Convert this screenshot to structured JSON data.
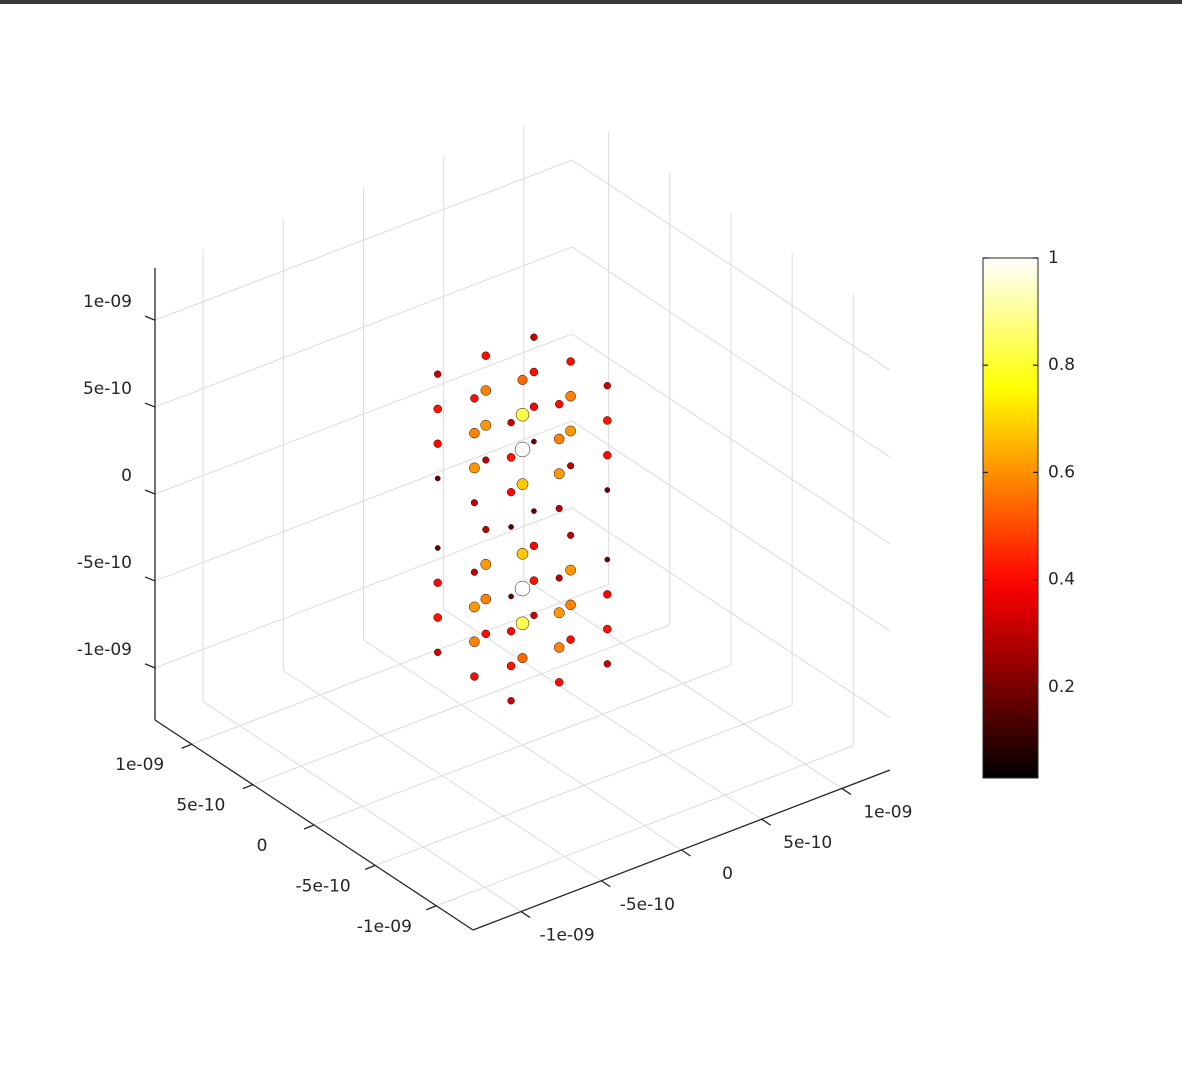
{
  "chart_data": {
    "type": "scatter3d",
    "colormap": "hot",
    "grid": true,
    "xlim": [
      -1.3e-09,
      1.3e-09
    ],
    "ylim": [
      -1.3e-09,
      1.3e-09
    ],
    "zlim": [
      -1.3e-09,
      1.3e-09
    ],
    "xticks": [
      {
        "value": -1e-09,
        "label": "-1e-09"
      },
      {
        "value": -5e-10,
        "label": "-5e-10"
      },
      0,
      {
        "value": 5e-10,
        "label": "5e-10"
      },
      {
        "value": 1e-09,
        "label": "1e-09"
      }
    ],
    "yticks": [
      {
        "value": -1e-09,
        "label": "-1e-09"
      },
      {
        "value": -5e-10,
        "label": "-5e-10"
      },
      0,
      {
        "value": 5e-10,
        "label": "5e-10"
      },
      {
        "value": 1e-09,
        "label": "1e-09"
      }
    ],
    "zticks": [
      {
        "value": -1e-09,
        "label": "-1e-09"
      },
      {
        "value": -5e-10,
        "label": "-5e-10"
      },
      0,
      {
        "value": 5e-10,
        "label": "5e-10"
      },
      {
        "value": 1e-09,
        "label": "1e-09"
      }
    ],
    "clim": [
      0.03,
      1
    ],
    "cticks": [
      0.2,
      0.4,
      0.6,
      0.8,
      1
    ],
    "x": [
      -3e-10,
      -3e-10,
      -3e-10,
      0,
      0,
      0,
      3e-10,
      3e-10,
      3e-10,
      -3e-10,
      -3e-10,
      -3e-10,
      0,
      0,
      0,
      3e-10,
      3e-10,
      3e-10,
      -3e-10,
      -3e-10,
      -3e-10,
      0,
      0,
      0,
      3e-10,
      3e-10,
      3e-10,
      -3e-10,
      -3e-10,
      -3e-10,
      0,
      0,
      0,
      3e-10,
      3e-10,
      3e-10,
      -3e-10,
      -3e-10,
      -3e-10,
      0,
      0,
      0,
      3e-10,
      3e-10,
      3e-10,
      -3e-10,
      -3e-10,
      -3e-10,
      0,
      0,
      0,
      3e-10,
      3e-10,
      3e-10,
      -3e-10,
      -3e-10,
      -3e-10,
      0,
      0,
      0,
      3e-10,
      3e-10,
      3e-10,
      -3e-10,
      -3e-10,
      -3e-10,
      0,
      0,
      0,
      3e-10,
      3e-10,
      3e-10
    ],
    "y": [
      -3e-10,
      0,
      3e-10,
      -3e-10,
      0,
      3e-10,
      -3e-10,
      0,
      3e-10,
      -3e-10,
      0,
      3e-10,
      -3e-10,
      0,
      3e-10,
      -3e-10,
      0,
      3e-10,
      -3e-10,
      0,
      3e-10,
      -3e-10,
      0,
      3e-10,
      -3e-10,
      0,
      3e-10,
      -3e-10,
      0,
      3e-10,
      -3e-10,
      0,
      3e-10,
      -3e-10,
      0,
      3e-10,
      -3e-10,
      0,
      3e-10,
      -3e-10,
      0,
      3e-10,
      -3e-10,
      0,
      3e-10,
      -3e-10,
      0,
      3e-10,
      -3e-10,
      0,
      3e-10,
      -3e-10,
      0,
      3e-10,
      -3e-10,
      0,
      3e-10,
      -3e-10,
      0,
      3e-10,
      -3e-10,
      0,
      3e-10,
      -3e-10,
      0,
      3e-10,
      -3e-10,
      0,
      3e-10,
      -3e-10,
      0,
      3e-10
    ],
    "z": [
      -8e-10,
      -8e-10,
      -8e-10,
      -8e-10,
      -8e-10,
      -8e-10,
      -8e-10,
      -8e-10,
      -8e-10,
      -6e-10,
      -6e-10,
      -6e-10,
      -6e-10,
      -6e-10,
      -6e-10,
      -6e-10,
      -6e-10,
      -6e-10,
      -4e-10,
      -4e-10,
      -4e-10,
      -4e-10,
      -4e-10,
      -4e-10,
      -4e-10,
      -4e-10,
      -4e-10,
      -2e-10,
      -2e-10,
      -2e-10,
      -2e-10,
      -2e-10,
      -2e-10,
      -2e-10,
      -2e-10,
      -2e-10,
      2e-10,
      2e-10,
      2e-10,
      2e-10,
      2e-10,
      2e-10,
      2e-10,
      2e-10,
      2e-10,
      4e-10,
      4e-10,
      4e-10,
      4e-10,
      4e-10,
      4e-10,
      4e-10,
      4e-10,
      4e-10,
      6e-10,
      6e-10,
      6e-10,
      6e-10,
      6e-10,
      6e-10,
      6e-10,
      6e-10,
      6e-10,
      8e-10,
      8e-10,
      8e-10,
      8e-10,
      8e-10,
      8e-10,
      8e-10,
      8e-10,
      8e-10
    ],
    "values": [
      0.32,
      0.41,
      0.32,
      0.41,
      0.54,
      0.41,
      0.32,
      0.41,
      0.32,
      0.42,
      0.58,
      0.42,
      0.58,
      0.83,
      0.58,
      0.42,
      0.58,
      0.42,
      0.4,
      0.61,
      0.4,
      0.61,
      1,
      0.61,
      0.4,
      0.61,
      0.4,
      0.18,
      0.3,
      0.18,
      0.3,
      0.68,
      0.3,
      0.18,
      0.3,
      0.18,
      0.18,
      0.3,
      0.18,
      0.3,
      0.68,
      0.3,
      0.18,
      0.3,
      0.18,
      0.4,
      0.61,
      0.4,
      0.61,
      1,
      0.61,
      0.4,
      0.61,
      0.4,
      0.42,
      0.58,
      0.42,
      0.58,
      0.83,
      0.58,
      0.42,
      0.58,
      0.42,
      0.32,
      0.41,
      0.32,
      0.41,
      0.54,
      0.41,
      0.32,
      0.41,
      0.32
    ]
  }
}
